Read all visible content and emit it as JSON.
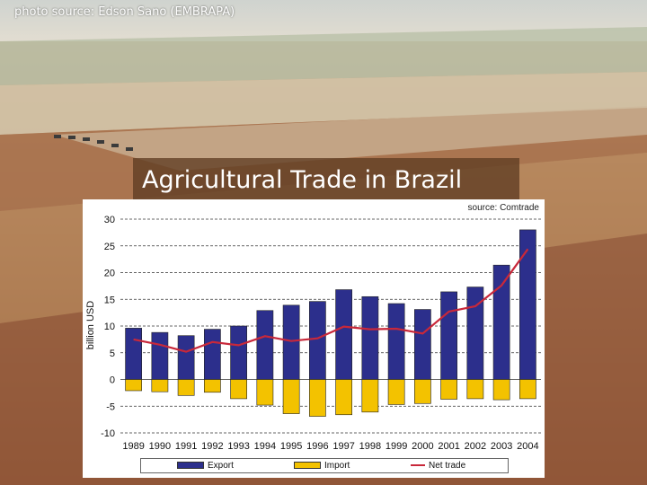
{
  "photo": {
    "credit": "photo source: Edson Sano (EMBRAPA)",
    "colors": {
      "sky": "#d9dbd6",
      "field_light": "#c9b79b",
      "field_dark": "#a7704a",
      "soil": "#8e5535"
    }
  },
  "slide": {
    "title": "Agricultural Trade in Brazil"
  },
  "chart_data": {
    "type": "bar",
    "source": "source: Comtrade",
    "categories": [
      "1989",
      "1990",
      "1991",
      "1992",
      "1993",
      "1994",
      "1995",
      "1996",
      "1997",
      "1998",
      "1999",
      "2000",
      "2001",
      "2002",
      "2003",
      "2004"
    ],
    "ylabel": "billion USD",
    "ylim": [
      -10,
      30
    ],
    "yticks": [
      30,
      25,
      20,
      15,
      10,
      5,
      0,
      -5,
      -10
    ],
    "grid": true,
    "legend_position": "bottom",
    "series": [
      {
        "name": "Export",
        "kind": "bar",
        "color": "#2c2f8c",
        "values": [
          9.6,
          8.8,
          8.2,
          9.4,
          10.0,
          12.9,
          13.9,
          14.6,
          16.8,
          15.5,
          14.2,
          13.1,
          16.4,
          17.3,
          21.4,
          28.0
        ]
      },
      {
        "name": "Import",
        "kind": "bar",
        "color": "#f3c200",
        "values": [
          -2.1,
          -2.3,
          -3.0,
          -2.4,
          -3.6,
          -4.8,
          -6.4,
          -6.9,
          -6.6,
          -6.1,
          -4.7,
          -4.5,
          -3.7,
          -3.6,
          -3.8,
          -3.6
        ]
      },
      {
        "name": "Net trade",
        "kind": "line",
        "color": "#c8283a",
        "values": [
          7.5,
          6.5,
          5.2,
          7.0,
          6.4,
          8.1,
          7.2,
          7.7,
          9.9,
          9.4,
          9.5,
          8.6,
          12.7,
          13.7,
          17.6,
          24.4
        ]
      }
    ]
  }
}
